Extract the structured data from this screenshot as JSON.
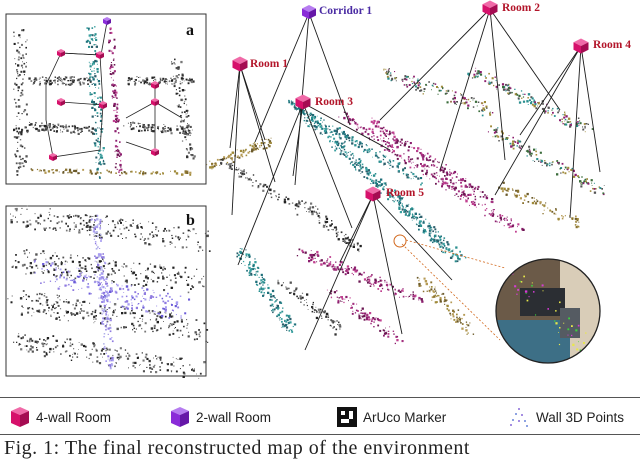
{
  "panels": {
    "a": "a",
    "b": "b"
  },
  "nodes": {
    "corridor_1": "Corridor 1",
    "room_1": "Room 1",
    "room_2": "Room 2",
    "room_3": "Room 3",
    "room_4": "Room 4",
    "room_5": "Room 5"
  },
  "legend": {
    "four_wall_room": "4-wall Room",
    "two_wall_room": "2-wall Room",
    "aruco_marker": "ArUco Marker",
    "wall_points": "Wall 3D Points"
  },
  "caption": "Fig. 1: The final reconstructed map of the environment",
  "colors": {
    "room_node": "#d6116b",
    "corridor_node": "#8a2bd8",
    "room_label": "#b3162b",
    "corridor_label": "#4a2ba3"
  }
}
